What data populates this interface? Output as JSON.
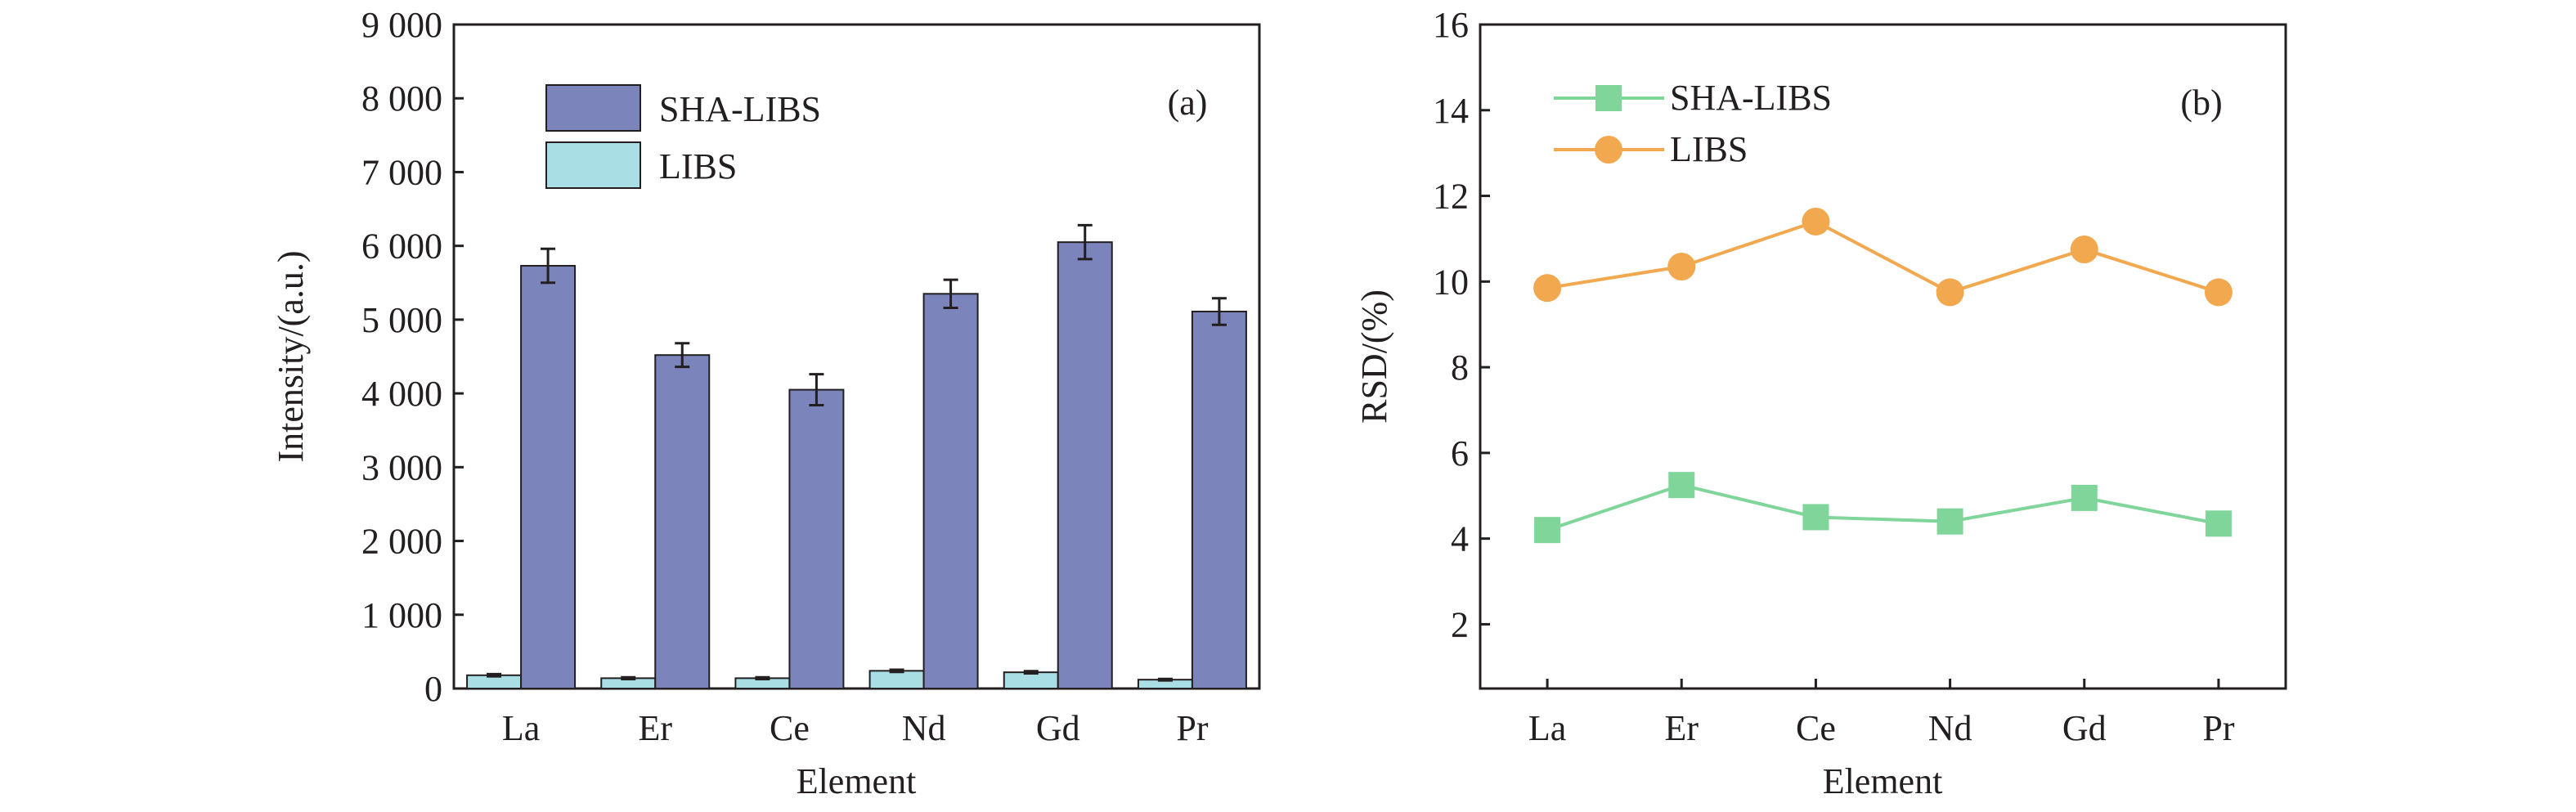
{
  "colors": {
    "sha_bar": "#7b84bb",
    "libs_bar": "#a9dfe4",
    "sha_line": "#7fd59a",
    "libs_line": "#f2a84e",
    "axis": "#231f20"
  },
  "chart_data": [
    {
      "id": "a",
      "type": "bar",
      "panel_label": "(a)",
      "xlabel": "Element",
      "ylabel": "Intensity/(a.u.)",
      "categories": [
        "La",
        "Er",
        "Ce",
        "Nd",
        "Gd",
        "Pr"
      ],
      "ylim": [
        0,
        9000
      ],
      "yticks": [
        0,
        1000,
        2000,
        3000,
        4000,
        5000,
        6000,
        7000,
        8000,
        9000
      ],
      "ytick_labels": [
        "0",
        "1 000",
        "2 000",
        "3 000",
        "4 000",
        "5 000",
        "6 000",
        "7 000",
        "8 000",
        "9 000"
      ],
      "grid": false,
      "legend_position": "top-left",
      "series": [
        {
          "name": "LIBS",
          "values": [
            180,
            140,
            140,
            240,
            220,
            120
          ],
          "errors": [
            15,
            12,
            12,
            15,
            15,
            10
          ]
        },
        {
          "name": "SHA-LIBS",
          "values": [
            5730,
            4520,
            4050,
            5350,
            6050,
            5110
          ],
          "errors": [
            230,
            160,
            210,
            190,
            230,
            180
          ]
        }
      ]
    },
    {
      "id": "b",
      "type": "line",
      "panel_label": "(b)",
      "xlabel": "Element",
      "ylabel": "RSD/(%)",
      "categories": [
        "La",
        "Er",
        "Ce",
        "Nd",
        "Gd",
        "Pr"
      ],
      "ylim": [
        0.5,
        16
      ],
      "yticks": [
        2,
        4,
        6,
        8,
        10,
        12,
        14,
        16
      ],
      "ytick_labels": [
        "2",
        "4",
        "6",
        "8",
        "10",
        "12",
        "14",
        "16"
      ],
      "grid": false,
      "legend_position": "top-left",
      "series": [
        {
          "name": "SHA-LIBS",
          "marker": "square",
          "values": [
            4.2,
            5.25,
            4.5,
            4.4,
            4.95,
            4.35
          ]
        },
        {
          "name": "LIBS",
          "marker": "circle",
          "values": [
            9.85,
            10.35,
            11.4,
            9.75,
            10.75,
            9.75
          ]
        }
      ]
    }
  ]
}
